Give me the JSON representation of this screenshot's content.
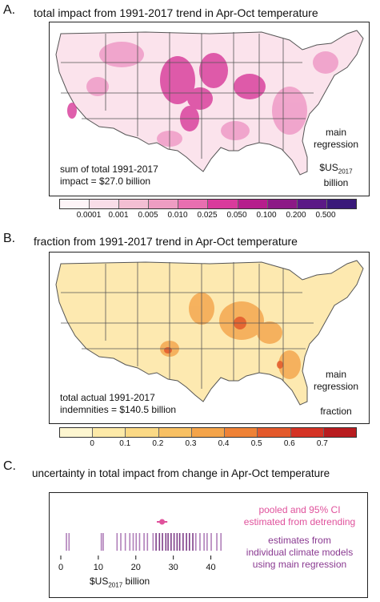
{
  "panels": {
    "a": {
      "letter": "A.",
      "title": "total impact from 1991-2017 trend in Apr-Oct temperature",
      "note_line1": "sum of total 1991-2017",
      "note_line2": "impact = $27.0 billion",
      "model_line1": "main",
      "model_line2": "regression",
      "units_main": "$US",
      "units_sub": "2017",
      "units_line2": "billion",
      "legend_colors": [
        "#fdf4f7",
        "#f9dde8",
        "#f3bfd3",
        "#ee9dc2",
        "#e86fb0",
        "#d93b9c",
        "#b61e8c",
        "#8c1a86",
        "#5b1a86",
        "#3a1a7a"
      ],
      "legend_ticks": [
        "0.0001",
        "0.001",
        "0.005",
        "0.010",
        "0.025",
        "0.050",
        "0.100",
        "0.200",
        "0.500"
      ]
    },
    "b": {
      "letter": "B.",
      "title": "fraction from 1991-2017 trend in Apr-Oct temperature",
      "note_line1": "total actual 1991-2017",
      "note_line2": "indemnities = $140.5 billion",
      "model_line1": "main",
      "model_line2": "regression",
      "units": "fraction",
      "legend_colors": [
        "#fdf6d0",
        "#fdeaa8",
        "#fbd985",
        "#f8c063",
        "#f4a44a",
        "#ef8236",
        "#e3592b",
        "#d43325",
        "#b81c1f"
      ],
      "legend_ticks": [
        "0",
        "0.1",
        "0.2",
        "0.3",
        "0.4",
        "0.5",
        "0.6",
        "0.7"
      ]
    },
    "c": {
      "letter": "C.",
      "title": "uncertainty in total impact from change in Apr-Oct temperature",
      "pooled_line1": "pooled and 95% CI",
      "pooled_line2": "estimated from detrending",
      "models_line1": "estimates from",
      "models_line2": "individual climate models",
      "models_line3": "using main regression",
      "axis_units_main": "$US",
      "axis_units_sub": "2017",
      "axis_units_rest": " billion"
    }
  },
  "colors": {
    "pooled": "#e0529c",
    "model_lines": "#b07fb9",
    "model_lines_dark": "#7e3d88"
  },
  "chart_data": [
    {
      "type": "heatmap",
      "title": "total impact from 1991-2017 trend in Apr-Oct temperature",
      "scale": "log-binned",
      "legend_bins": [
        "0.0001",
        "0.001",
        "0.005",
        "0.010",
        "0.025",
        "0.050",
        "0.100",
        "0.200",
        "0.500"
      ],
      "units": "$US2017 billion",
      "total": "$27.0 billion"
    },
    {
      "type": "heatmap",
      "title": "fraction from 1991-2017 trend in Apr-Oct temperature",
      "legend_bins": [
        0,
        0.1,
        0.2,
        0.3,
        0.4,
        0.5,
        0.6,
        0.7
      ],
      "units": "fraction",
      "total_indemnities": "$140.5 billion"
    },
    {
      "type": "scatter",
      "title": "uncertainty in total impact from change in Apr-Oct temperature",
      "xlim": [
        0,
        45
      ],
      "x_ticks": [
        0,
        10,
        20,
        30,
        40
      ],
      "xlabel": "$US2017 billion",
      "series": [
        {
          "name": "pooled and 95% CI estimated from detrending",
          "estimate": 27.0,
          "ci": [
            25.6,
            28.4
          ]
        },
        {
          "name": "estimates from individual climate models using main regression",
          "values": [
            1.5,
            2.2,
            10.8,
            11.3,
            15.0,
            16.0,
            17.2,
            18.4,
            19.3,
            20.1,
            21.0,
            22.2,
            23.1,
            24.6,
            25.4,
            26.3,
            27.1,
            28.0,
            28.6,
            29.4,
            30.2,
            31.0,
            31.7,
            32.6,
            33.5,
            34.3,
            35.2,
            36.0,
            37.1,
            38.2,
            39.0,
            40.1,
            41.6,
            42.7
          ]
        }
      ]
    }
  ]
}
